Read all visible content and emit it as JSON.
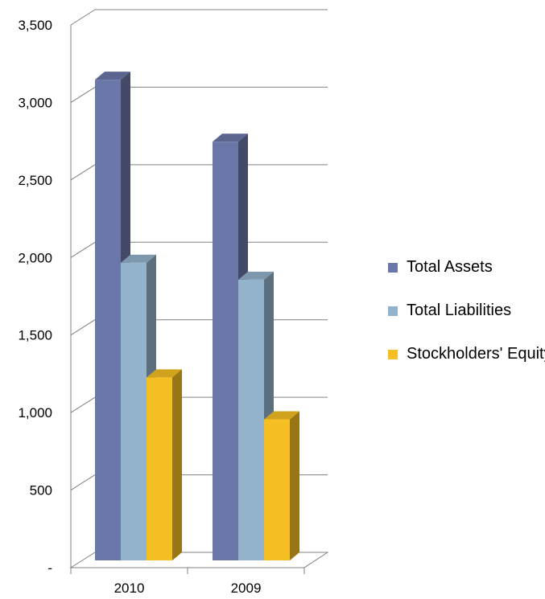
{
  "chart_data": {
    "type": "bar",
    "categories": [
      "2010",
      "2009"
    ],
    "series": [
      {
        "name": "Total Assets",
        "values": [
          3100,
          2700
        ],
        "color": "#6b77a8"
      },
      {
        "name": "Total Liabilities",
        "values": [
          1920,
          1810
        ],
        "color": "#93b3cc"
      },
      {
        "name": "Stockholders' Equity",
        "values": [
          1180,
          910
        ],
        "color": "#f5be22"
      }
    ],
    "y_ticks": [
      {
        "value": 0,
        "label": "-"
      },
      {
        "value": 500,
        "label": "500"
      },
      {
        "value": 1000,
        "label": "1,000"
      },
      {
        "value": 1500,
        "label": "1,500"
      },
      {
        "value": 2000,
        "label": "2,000"
      },
      {
        "value": 2500,
        "label": "2,500"
      },
      {
        "value": 3000,
        "label": "3,000"
      },
      {
        "value": 3500,
        "label": "3,500"
      }
    ],
    "ylim": [
      0,
      3500
    ],
    "grid": true,
    "legend_position": "right"
  }
}
